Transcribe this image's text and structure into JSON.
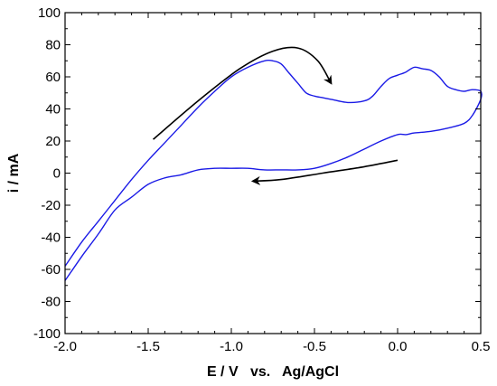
{
  "chart_data": {
    "type": "line",
    "title": "",
    "xlabel": "E / V   vs.   Ag/AgCl",
    "ylabel": "i / mA",
    "xlim": [
      -2.0,
      0.5
    ],
    "ylim": [
      -100,
      100
    ],
    "x_ticks": [
      -2.0,
      -1.5,
      -1.0,
      -0.5,
      0.0,
      0.5
    ],
    "x_tick_labels": [
      "-2.0",
      "-1.5",
      "-1.0",
      "-0.5",
      "0.0",
      "0.5"
    ],
    "y_ticks": [
      -100,
      -80,
      -60,
      -40,
      -20,
      0,
      20,
      40,
      60,
      80,
      100
    ],
    "y_tick_labels": [
      "-100",
      "-80",
      "-60",
      "-40",
      "-20",
      "0",
      "20",
      "40",
      "60",
      "80",
      "100"
    ],
    "grid": false,
    "legend": "none",
    "colors": {
      "series": "#1a1ae6",
      "arrows": "#000000",
      "axes": "#000000"
    },
    "series": [
      {
        "x": [
          -2.0,
          -1.9,
          -1.8,
          -1.7,
          -1.6,
          -1.5,
          -1.4,
          -1.3,
          -1.2,
          -1.1,
          -1.0,
          -0.9,
          -0.8,
          -0.75,
          -0.7,
          -0.65,
          -0.6,
          -0.55,
          -0.5,
          -0.45,
          -0.4,
          -0.3,
          -0.2,
          -0.15,
          -0.1,
          -0.05,
          0.0,
          0.05,
          0.1,
          0.15,
          0.2,
          0.25,
          0.3,
          0.35,
          0.4,
          0.45,
          0.5,
          0.5,
          0.45,
          0.4,
          0.3,
          0.2,
          0.1,
          0.05,
          0.0,
          -0.1,
          -0.2,
          -0.3,
          -0.4,
          -0.5,
          -0.6,
          -0.7,
          -0.8,
          -0.9,
          -1.0,
          -1.1,
          -1.2,
          -1.3,
          -1.4,
          -1.5,
          -1.6,
          -1.7,
          -1.8,
          -1.9,
          -2.0
        ],
        "y": [
          -58,
          -43,
          -30,
          -17,
          -4,
          8,
          19,
          30,
          41,
          51,
          60,
          66,
          70,
          70,
          68,
          62,
          56,
          50,
          48,
          47,
          46,
          44,
          45,
          48,
          54,
          59,
          61,
          63,
          66,
          65,
          64,
          60,
          54,
          52,
          51,
          52,
          51,
          46,
          36,
          31,
          28,
          26,
          25,
          24,
          24,
          20,
          15,
          10,
          6,
          3,
          2,
          2,
          2,
          3,
          3,
          3,
          2,
          -1,
          -3,
          -7,
          -15,
          -23,
          -38,
          -52,
          -67
        ]
      }
    ],
    "annotations": [
      {
        "type": "arrow",
        "path_x": [
          -1.47,
          -1.2,
          -0.95,
          -0.75,
          -0.6,
          -0.48,
          -0.4
        ],
        "path_y": [
          21,
          45,
          65,
          76,
          78,
          70,
          56
        ]
      },
      {
        "type": "arrow",
        "path_x": [
          0.0,
          -0.2,
          -0.45,
          -0.7,
          -0.87
        ],
        "path_y": [
          8,
          4,
          0,
          -4,
          -5
        ]
      }
    ]
  }
}
